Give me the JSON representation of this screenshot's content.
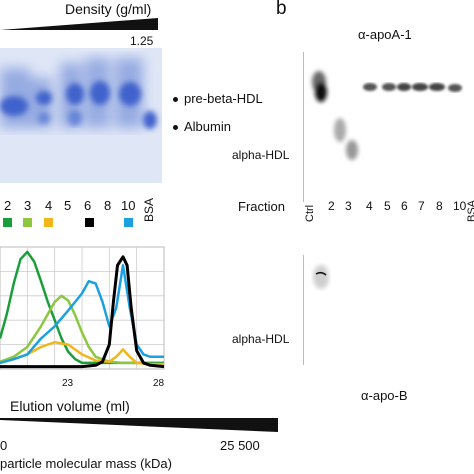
{
  "panel_a": {
    "density_label": "Density (g/ml)",
    "density_max": "1.25",
    "gel_labels": [
      "pre-beta-HDL",
      "Albumin"
    ],
    "fractions": [
      {
        "label": "2",
        "color": "#1a9e3a"
      },
      {
        "label": "3",
        "color": "#8dc63f"
      },
      {
        "label": "4",
        "color": "#f2b51c"
      },
      {
        "label": "5",
        "color": "#ffffff"
      },
      {
        "label": "6",
        "color": "#000000"
      },
      {
        "label": "8",
        "color": "#ffffff"
      },
      {
        "label": "10",
        "color": "#1ba1e2"
      },
      {
        "label": "BSA",
        "color": "#ffffff"
      }
    ],
    "elution_label": "Elution volume (ml)",
    "mass_label": "particle molecular mass (kDa)",
    "mass_left": "0",
    "mass_right": "25 500"
  },
  "chart_data": {
    "type": "line",
    "xlabel": "Elution volume (ml)",
    "x_ticks": [
      "23",
      "28"
    ],
    "xlim": [
      16,
      28
    ],
    "ylim": [
      0,
      1
    ],
    "series": [
      {
        "color": "#1a9e3a",
        "x": [
          16,
          16.5,
          17,
          17.5,
          18,
          18.5,
          19,
          19.5,
          20,
          20.5,
          21,
          21.5,
          22,
          23,
          24,
          25,
          26,
          27,
          28
        ],
        "values": [
          0.25,
          0.45,
          0.7,
          0.9,
          0.96,
          0.88,
          0.72,
          0.55,
          0.4,
          0.25,
          0.14,
          0.08,
          0.05,
          0.05,
          0.05,
          0.05,
          0.05,
          0.05,
          0.05
        ]
      },
      {
        "color": "#8dc63f",
        "x": [
          16,
          17,
          18,
          19,
          19.5,
          20,
          20.5,
          21,
          21.5,
          22,
          22.5,
          23,
          24,
          25,
          26,
          27,
          28
        ],
        "values": [
          0.06,
          0.1,
          0.18,
          0.35,
          0.45,
          0.55,
          0.6,
          0.56,
          0.44,
          0.3,
          0.18,
          0.1,
          0.06,
          0.05,
          0.05,
          0.04,
          0.04
        ]
      },
      {
        "color": "#f2b51c",
        "x": [
          16,
          17,
          18,
          19,
          20,
          21,
          22,
          23,
          24,
          24.5,
          25,
          25.5,
          26,
          27,
          28
        ],
        "values": [
          0.05,
          0.08,
          0.12,
          0.18,
          0.22,
          0.2,
          0.12,
          0.07,
          0.06,
          0.1,
          0.16,
          0.1,
          0.05,
          0.04,
          0.04
        ]
      },
      {
        "color": "#1ba1e2",
        "x": [
          16,
          17,
          18,
          19,
          20,
          21,
          22,
          22.5,
          23,
          23.5,
          24,
          24.5,
          25,
          25.5,
          26,
          26.5,
          27,
          27.5,
          28
        ],
        "values": [
          0.05,
          0.08,
          0.12,
          0.25,
          0.35,
          0.48,
          0.62,
          0.72,
          0.7,
          0.55,
          0.35,
          0.5,
          0.85,
          0.5,
          0.2,
          0.12,
          0.1,
          0.1,
          0.1
        ]
      },
      {
        "color": "#000000",
        "x": [
          16,
          18,
          20,
          22,
          23,
          23.5,
          24,
          24.3,
          24.6,
          25,
          25.3,
          25.6,
          26,
          26.5,
          27,
          28
        ],
        "values": [
          0.02,
          0.02,
          0.02,
          0.02,
          0.03,
          0.06,
          0.2,
          0.55,
          0.85,
          0.92,
          0.85,
          0.5,
          0.15,
          0.05,
          0.03,
          0.02
        ]
      }
    ]
  },
  "panel_b": {
    "letter": "b",
    "top_title": "α-apoA-1",
    "alpha_hdl_top": "alpha-HDL",
    "fraction_word": "Fraction",
    "lanes": [
      "Ctrl",
      "2",
      "3",
      "4",
      "5",
      "6",
      "7",
      "8",
      "10",
      "BSA"
    ],
    "alpha_hdl_bottom": "alpha-HDL",
    "bottom_title": "α-apo-B"
  }
}
